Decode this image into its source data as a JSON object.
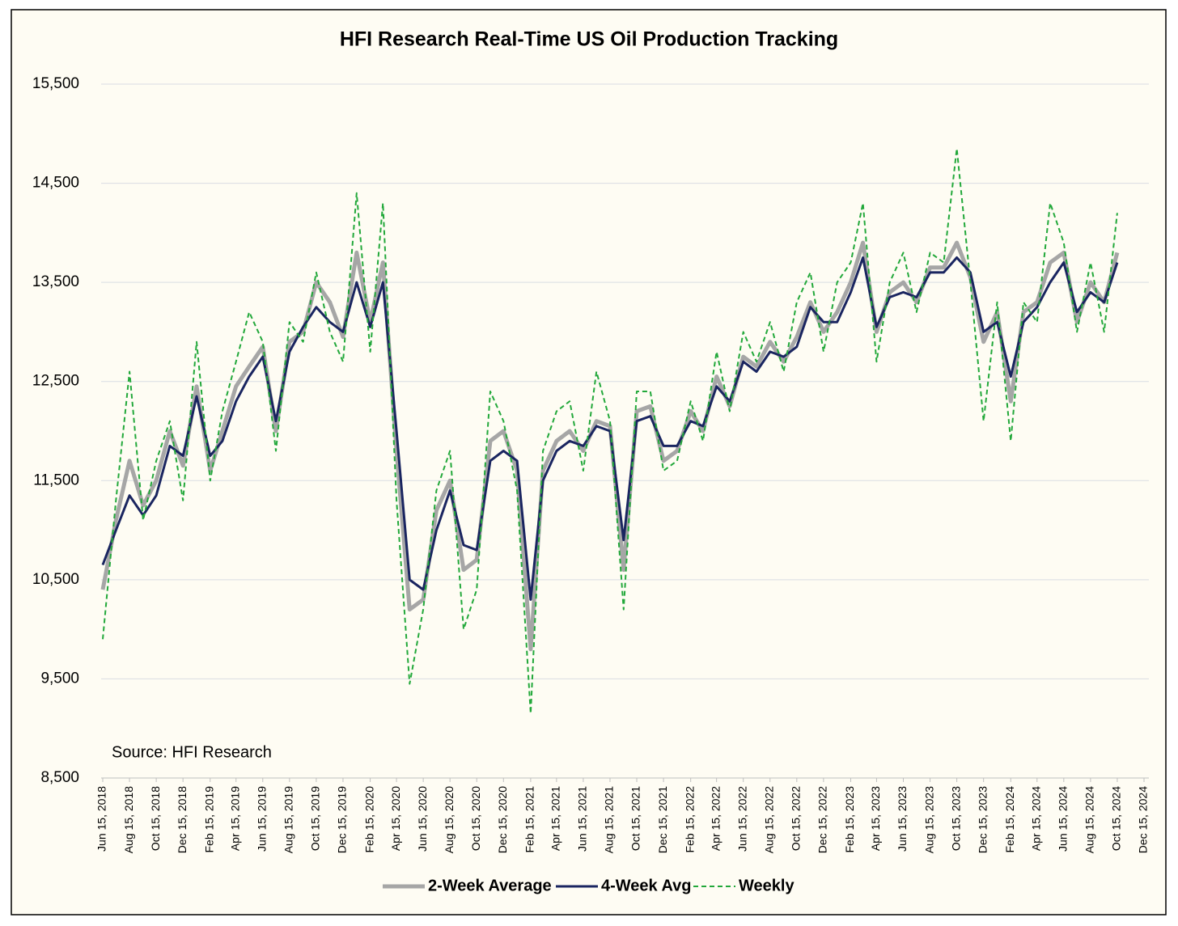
{
  "chart_data": {
    "type": "line",
    "title": "HFI Research Real-Time US Oil Production Tracking",
    "annotation": "Source: HFI Research",
    "x": [
      "2018-06-15",
      "2018-07-15",
      "2018-08-15",
      "2018-09-15",
      "2018-10-15",
      "2018-11-15",
      "2018-12-15",
      "2019-01-15",
      "2019-02-15",
      "2019-03-15",
      "2019-04-15",
      "2019-05-15",
      "2019-06-15",
      "2019-07-15",
      "2019-08-15",
      "2019-09-15",
      "2019-10-15",
      "2019-11-15",
      "2019-12-15",
      "2020-01-15",
      "2020-02-15",
      "2020-03-15",
      "2020-04-15",
      "2020-05-15",
      "2020-06-15",
      "2020-07-15",
      "2020-08-15",
      "2020-09-15",
      "2020-10-15",
      "2020-11-15",
      "2020-12-15",
      "2021-01-15",
      "2021-02-15",
      "2021-03-15",
      "2021-04-15",
      "2021-05-15",
      "2021-06-15",
      "2021-07-15",
      "2021-08-15",
      "2021-09-15",
      "2021-10-15",
      "2021-11-15",
      "2021-12-15",
      "2022-01-15",
      "2022-02-15",
      "2022-03-15",
      "2022-04-15",
      "2022-05-15",
      "2022-06-15",
      "2022-07-15",
      "2022-08-15",
      "2022-09-15",
      "2022-10-15",
      "2022-11-15",
      "2022-12-15",
      "2023-01-15",
      "2023-02-15",
      "2023-03-15",
      "2023-04-15",
      "2023-05-15",
      "2023-06-15",
      "2023-07-15",
      "2023-08-15",
      "2023-09-15",
      "2023-10-15",
      "2023-11-15",
      "2023-12-15",
      "2024-01-15",
      "2024-02-15",
      "2024-03-15",
      "2024-04-15",
      "2024-05-15",
      "2024-06-15",
      "2024-07-15",
      "2024-08-15",
      "2024-09-15",
      "2024-10-15"
    ],
    "series": [
      {
        "name": "2-Week Average",
        "color": "#a6a6a6",
        "style": "solid",
        "width": 5,
        "values": [
          10400,
          11100,
          11700,
          11250,
          11500,
          12000,
          11650,
          12450,
          11600,
          12000,
          12450,
          12650,
          12850,
          12000,
          12900,
          13000,
          13500,
          13300,
          12950,
          13800,
          13100,
          13700,
          11800,
          10200,
          10300,
          11200,
          11500,
          10600,
          10700,
          11900,
          12000,
          11600,
          9800,
          11600,
          11900,
          12000,
          11800,
          12100,
          12050,
          10600,
          12200,
          12250,
          11700,
          11800,
          12200,
          12000,
          12550,
          12250,
          12750,
          12650,
          12900,
          12700,
          12950,
          13300,
          13000,
          13200,
          13500,
          13900,
          13000,
          13400,
          13500,
          13300,
          13650,
          13650,
          13900,
          13550,
          12900,
          13200,
          12300,
          13200,
          13300,
          13700,
          13800,
          13100,
          13500,
          13300,
          13800
        ]
      },
      {
        "name": "4-Week Avg",
        "color": "#1a2560",
        "style": "solid",
        "width": 3,
        "values": [
          10650,
          11000,
          11350,
          11150,
          11350,
          11850,
          11750,
          12350,
          11750,
          11900,
          12300,
          12550,
          12750,
          12100,
          12800,
          13050,
          13250,
          13100,
          13000,
          13500,
          13050,
          13500,
          12000,
          10500,
          10400,
          11000,
          11400,
          10850,
          10800,
          11700,
          11800,
          11700,
          10300,
          11500,
          11800,
          11900,
          11850,
          12050,
          12000,
          10900,
          12100,
          12150,
          11850,
          11850,
          12100,
          12050,
          12450,
          12300,
          12700,
          12600,
          12800,
          12750,
          12850,
          13250,
          13100,
          13100,
          13400,
          13750,
          13050,
          13350,
          13400,
          13350,
          13600,
          13600,
          13750,
          13600,
          13000,
          13100,
          12550,
          13100,
          13250,
          13500,
          13700,
          13200,
          13400,
          13300,
          13700
        ]
      },
      {
        "name": "Weekly",
        "color": "#22a83a",
        "style": "dashed",
        "width": 2,
        "values": [
          9900,
          11300,
          12600,
          11100,
          11700,
          12100,
          11300,
          12900,
          11500,
          12200,
          12700,
          13200,
          12900,
          11800,
          13100,
          12900,
          13600,
          13000,
          12700,
          14400,
          12800,
          14300,
          11300,
          9450,
          10200,
          11400,
          11800,
          10000,
          10400,
          12400,
          12100,
          11400,
          9150,
          11800,
          12200,
          12300,
          11600,
          12600,
          12100,
          10200,
          12400,
          12400,
          11600,
          11700,
          12300,
          11900,
          12800,
          12200,
          13000,
          12700,
          13100,
          12600,
          13300,
          13600,
          12800,
          13500,
          13700,
          14300,
          12700,
          13500,
          13800,
          13200,
          13800,
          13700,
          14850,
          13500,
          12100,
          13300,
          11900,
          13300,
          13100,
          14300,
          13900,
          13000,
          13700,
          13000,
          14200
        ]
      }
    ],
    "xlim": [
      "2018-06-15",
      "2024-12-15"
    ],
    "xticks": [
      {
        "value": "2018-06-15",
        "label": "Jun 15, 2018"
      },
      {
        "value": "2018-08-15",
        "label": "Aug 15, 2018"
      },
      {
        "value": "2018-10-15",
        "label": "Oct 15, 2018"
      },
      {
        "value": "2018-12-15",
        "label": "Dec 15, 2018"
      },
      {
        "value": "2019-02-15",
        "label": "Feb 15, 2019"
      },
      {
        "value": "2019-04-15",
        "label": "Apr 15, 2019"
      },
      {
        "value": "2019-06-15",
        "label": "Jun 15, 2019"
      },
      {
        "value": "2019-08-15",
        "label": "Aug 15, 2019"
      },
      {
        "value": "2019-10-15",
        "label": "Oct 15, 2019"
      },
      {
        "value": "2019-12-15",
        "label": "Dec 15, 2019"
      },
      {
        "value": "2020-02-15",
        "label": "Feb 15, 2020"
      },
      {
        "value": "2020-04-15",
        "label": "Apr 15, 2020"
      },
      {
        "value": "2020-06-15",
        "label": "Jun 15, 2020"
      },
      {
        "value": "2020-08-15",
        "label": "Aug 15, 2020"
      },
      {
        "value": "2020-10-15",
        "label": "Oct 15, 2020"
      },
      {
        "value": "2020-12-15",
        "label": "Dec 15, 2020"
      },
      {
        "value": "2021-02-15",
        "label": "Feb 15, 2021"
      },
      {
        "value": "2021-04-15",
        "label": "Apr 15, 2021"
      },
      {
        "value": "2021-06-15",
        "label": "Jun 15, 2021"
      },
      {
        "value": "2021-08-15",
        "label": "Aug 15, 2021"
      },
      {
        "value": "2021-10-15",
        "label": "Oct 15, 2021"
      },
      {
        "value": "2021-12-15",
        "label": "Dec 15, 2021"
      },
      {
        "value": "2022-02-15",
        "label": "Feb 15, 2022"
      },
      {
        "value": "2022-04-15",
        "label": "Apr 15, 2022"
      },
      {
        "value": "2022-06-15",
        "label": "Jun 15, 2022"
      },
      {
        "value": "2022-08-15",
        "label": "Aug 15, 2022"
      },
      {
        "value": "2022-10-15",
        "label": "Oct 15, 2022"
      },
      {
        "value": "2022-12-15",
        "label": "Dec 15, 2022"
      },
      {
        "value": "2023-02-15",
        "label": "Feb 15, 2023"
      },
      {
        "value": "2023-04-15",
        "label": "Apr 15, 2023"
      },
      {
        "value": "2023-06-15",
        "label": "Jun 15, 2023"
      },
      {
        "value": "2023-08-15",
        "label": "Aug 15, 2023"
      },
      {
        "value": "2023-10-15",
        "label": "Oct 15, 2023"
      },
      {
        "value": "2023-12-15",
        "label": "Dec 15, 2023"
      },
      {
        "value": "2024-02-15",
        "label": "Feb 15, 2024"
      },
      {
        "value": "2024-04-15",
        "label": "Apr 15, 2024"
      },
      {
        "value": "2024-06-15",
        "label": "Jun 15, 2024"
      },
      {
        "value": "2024-08-15",
        "label": "Aug 15, 2024"
      },
      {
        "value": "2024-10-15",
        "label": "Oct 15, 2024"
      },
      {
        "value": "2024-12-15",
        "label": "Dec 15, 2024"
      }
    ],
    "ylim": [
      8500,
      15500
    ],
    "yticks": [
      {
        "value": 8500,
        "label": "8,500"
      },
      {
        "value": 9500,
        "label": "9,500"
      },
      {
        "value": 10500,
        "label": "10,500"
      },
      {
        "value": 11500,
        "label": "11,500"
      },
      {
        "value": 12500,
        "label": "12,500"
      },
      {
        "value": 13500,
        "label": "13,500"
      },
      {
        "value": 14500,
        "label": "14,500"
      },
      {
        "value": 15500,
        "label": "15,500"
      }
    ],
    "grid": true,
    "legend": "bottom"
  }
}
